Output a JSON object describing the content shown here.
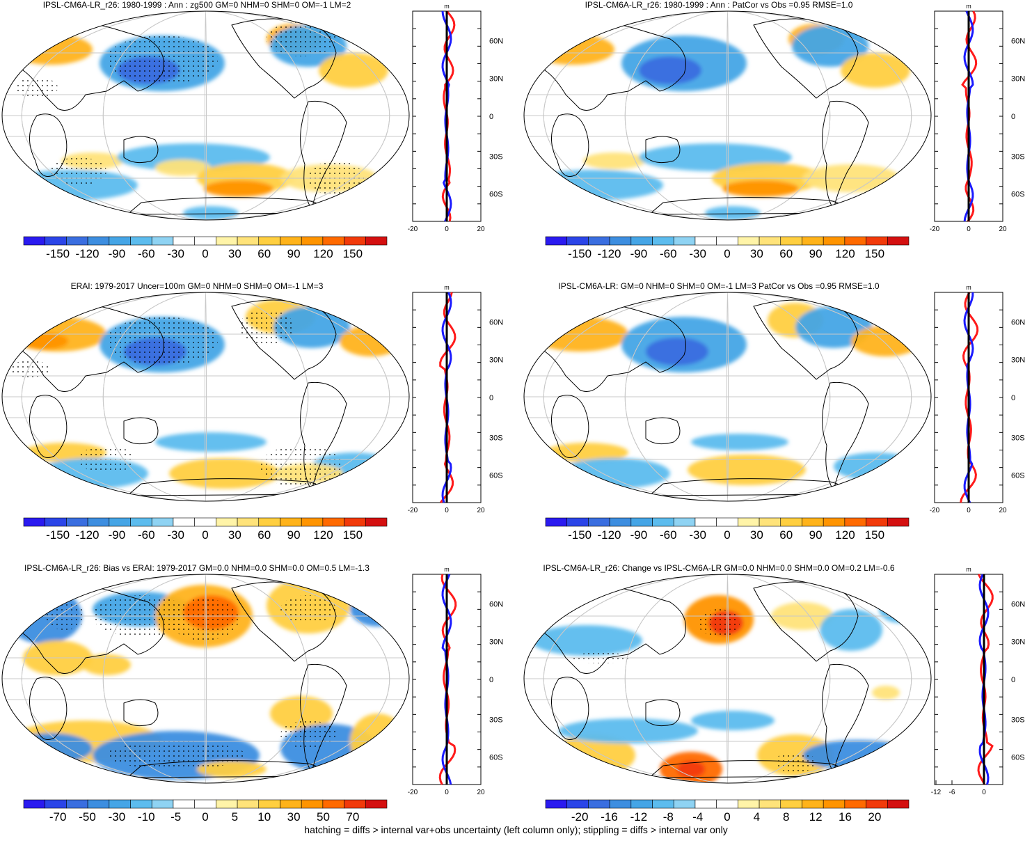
{
  "panels": [
    {
      "title": "IPSL-CM6A-LR_r26: 1980-1999 : Ann : zg500 GM=0 NHM=0 SHM=0 OM=-1 LM=2",
      "colorbar_labels": [
        "-150",
        "-120",
        "-90",
        "-60",
        "-30",
        "0",
        "30",
        "60",
        "90",
        "120",
        "150"
      ],
      "stipple": true,
      "profile_xticks": [
        "-20",
        "0",
        "20"
      ],
      "profile_unit": "m"
    },
    {
      "title": "IPSL-CM6A-LR_r26: 1980-1999 : Ann : PatCor vs Obs =0.95 RMSE=1.0",
      "colorbar_labels": [
        "-150",
        "-120",
        "-90",
        "-60",
        "-30",
        "0",
        "30",
        "60",
        "90",
        "120",
        "150"
      ],
      "stipple": false,
      "profile_xticks": [
        "-20",
        "0",
        "20"
      ],
      "profile_unit": "m"
    },
    {
      "title": "ERAI: 1979-2017 Uncer=100m GM=0 NHM=0 SHM=0 OM=-1 LM=3",
      "colorbar_labels": [
        "-150",
        "-120",
        "-90",
        "-60",
        "-30",
        "0",
        "30",
        "60",
        "90",
        "120",
        "150"
      ],
      "stipple": true,
      "profile_xticks": [
        "-20",
        "0",
        "20"
      ],
      "profile_unit": "m"
    },
    {
      "title": "IPSL-CM6A-LR: GM=0 NHM=0 SHM=0 OM=-1 LM=3 PatCor vs Obs =0.95 RMSE=1.0",
      "colorbar_labels": [
        "-150",
        "-120",
        "-90",
        "-60",
        "-30",
        "0",
        "30",
        "60",
        "90",
        "120",
        "150"
      ],
      "stipple": false,
      "profile_xticks": [
        "-20",
        "0",
        "20"
      ],
      "profile_unit": "m"
    },
    {
      "title": "IPSL-CM6A-LR_r26: Bias vs ERAI: 1979-2017 GM=0.0 NHM=0.0 SHM=0.0 OM=0.5 LM=-1.3",
      "colorbar_labels": [
        "-70",
        "-50",
        "-30",
        "-10",
        "-5",
        "0",
        "5",
        "10",
        "30",
        "50",
        "70"
      ],
      "stipple": true,
      "profile_xticks": [
        "-20",
        "0",
        "20"
      ],
      "profile_unit": "m"
    },
    {
      "title": "IPSL-CM6A-LR_r26: Change vs IPSL-CM6A-LR GM=0.0 NHM=0.0 SHM=0.0 OM=0.2 LM=-0.6",
      "colorbar_labels": [
        "-20",
        "-16",
        "-12",
        "-8",
        "-4",
        "0",
        "4",
        "8",
        "12",
        "16",
        "20"
      ],
      "stipple": true,
      "profile_xticks": [
        "-12",
        "-6",
        "0"
      ],
      "profile_unit": "m"
    }
  ],
  "lat_labels": [
    "60N",
    "30N",
    "0",
    "30S",
    "60S"
  ],
  "colorbar_colors": [
    "#2a1af0",
    "#2b45e8",
    "#3a6ee0",
    "#3d8ee0",
    "#45a5e6",
    "#5cbcee",
    "#8fd3f3",
    "#ffffff",
    "#ffffff",
    "#fff4a8",
    "#ffe37a",
    "#ffcf40",
    "#ffb31a",
    "#ff9400",
    "#ff6a00",
    "#f23a0a",
    "#d41010"
  ],
  "caption": "hatching = diffs > internal var+obs uncertainty (left column only); stippling = diffs > internal var only",
  "chart_data": [
    {
      "type": "heatmap",
      "title": "IPSL-CM6A-LR_r26: 1980-1999 : Ann : zg500 GM=0 NHM=0 SHM=0 OM=-1 LM=2",
      "colorbar_range": [
        -150,
        150
      ],
      "zonal_profile_x_range": [
        -20,
        20
      ],
      "zonal_profile_y_ticks": [
        "60N",
        "30N",
        "0",
        "30S",
        "60S"
      ]
    },
    {
      "type": "heatmap",
      "title": "IPSL-CM6A-LR_r26: 1980-1999 : Ann : PatCor vs Obs =0.95 RMSE=1.0",
      "colorbar_range": [
        -150,
        150
      ],
      "zonal_profile_x_range": [
        -20,
        20
      ],
      "zonal_profile_y_ticks": [
        "60N",
        "30N",
        "0",
        "30S",
        "60S"
      ]
    },
    {
      "type": "heatmap",
      "title": "ERAI: 1979-2017 Uncer=100m GM=0 NHM=0 SHM=0 OM=-1 LM=3",
      "colorbar_range": [
        -150,
        150
      ],
      "zonal_profile_x_range": [
        -20,
        20
      ],
      "zonal_profile_y_ticks": [
        "60N",
        "30N",
        "0",
        "30S",
        "60S"
      ]
    },
    {
      "type": "heatmap",
      "title": "IPSL-CM6A-LR: GM=0 NHM=0 SHM=0 OM=-1 LM=3 PatCor vs Obs =0.95 RMSE=1.0",
      "colorbar_range": [
        -150,
        150
      ],
      "zonal_profile_x_range": [
        -20,
        20
      ],
      "zonal_profile_y_ticks": [
        "60N",
        "30N",
        "0",
        "30S",
        "60S"
      ]
    },
    {
      "type": "heatmap",
      "title": "IPSL-CM6A-LR_r26: Bias vs ERAI: 1979-2017 GM=0.0 NHM=0.0 SHM=0.0 OM=0.5 LM=-1.3",
      "colorbar_range": [
        -70,
        70
      ],
      "zonal_profile_x_range": [
        -20,
        20
      ],
      "zonal_profile_y_ticks": [
        "60N",
        "30N",
        "0",
        "30S",
        "60S"
      ]
    },
    {
      "type": "heatmap",
      "title": "IPSL-CM6A-LR_r26: Change vs IPSL-CM6A-LR GM=0.0 NHM=0.0 SHM=0.0 OM=0.2 LM=-0.6",
      "colorbar_range": [
        -20,
        20
      ],
      "zonal_profile_x_range": [
        -12,
        0
      ],
      "zonal_profile_y_ticks": [
        "60N",
        "30N",
        "0",
        "30S",
        "60S"
      ]
    }
  ]
}
